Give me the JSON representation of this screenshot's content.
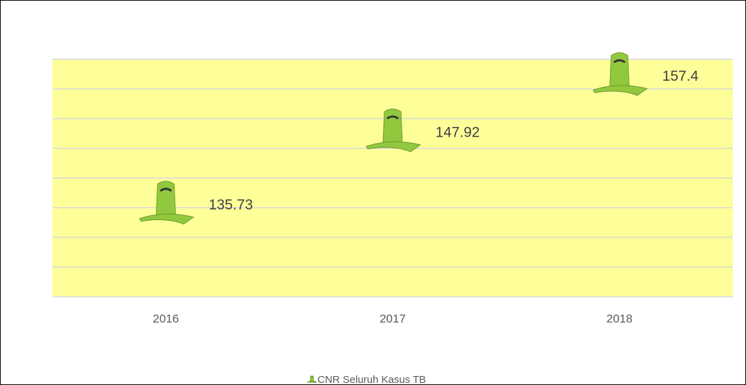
{
  "chart_data": {
    "type": "scatter",
    "categories": [
      "2016",
      "2017",
      "2018"
    ],
    "series": [
      {
        "name": "CNR Seluruh Kasus TB",
        "color": "#92c83e",
        "values": [
          135.73,
          147.92,
          157.4
        ]
      }
    ],
    "ylim": [
      120,
      160
    ],
    "yticks": [
      120,
      125,
      130,
      135,
      140,
      145,
      150,
      155,
      160
    ],
    "show_ytick_labels": false,
    "grid": true,
    "plot_background": "#ffff99",
    "legend": "bottom"
  }
}
